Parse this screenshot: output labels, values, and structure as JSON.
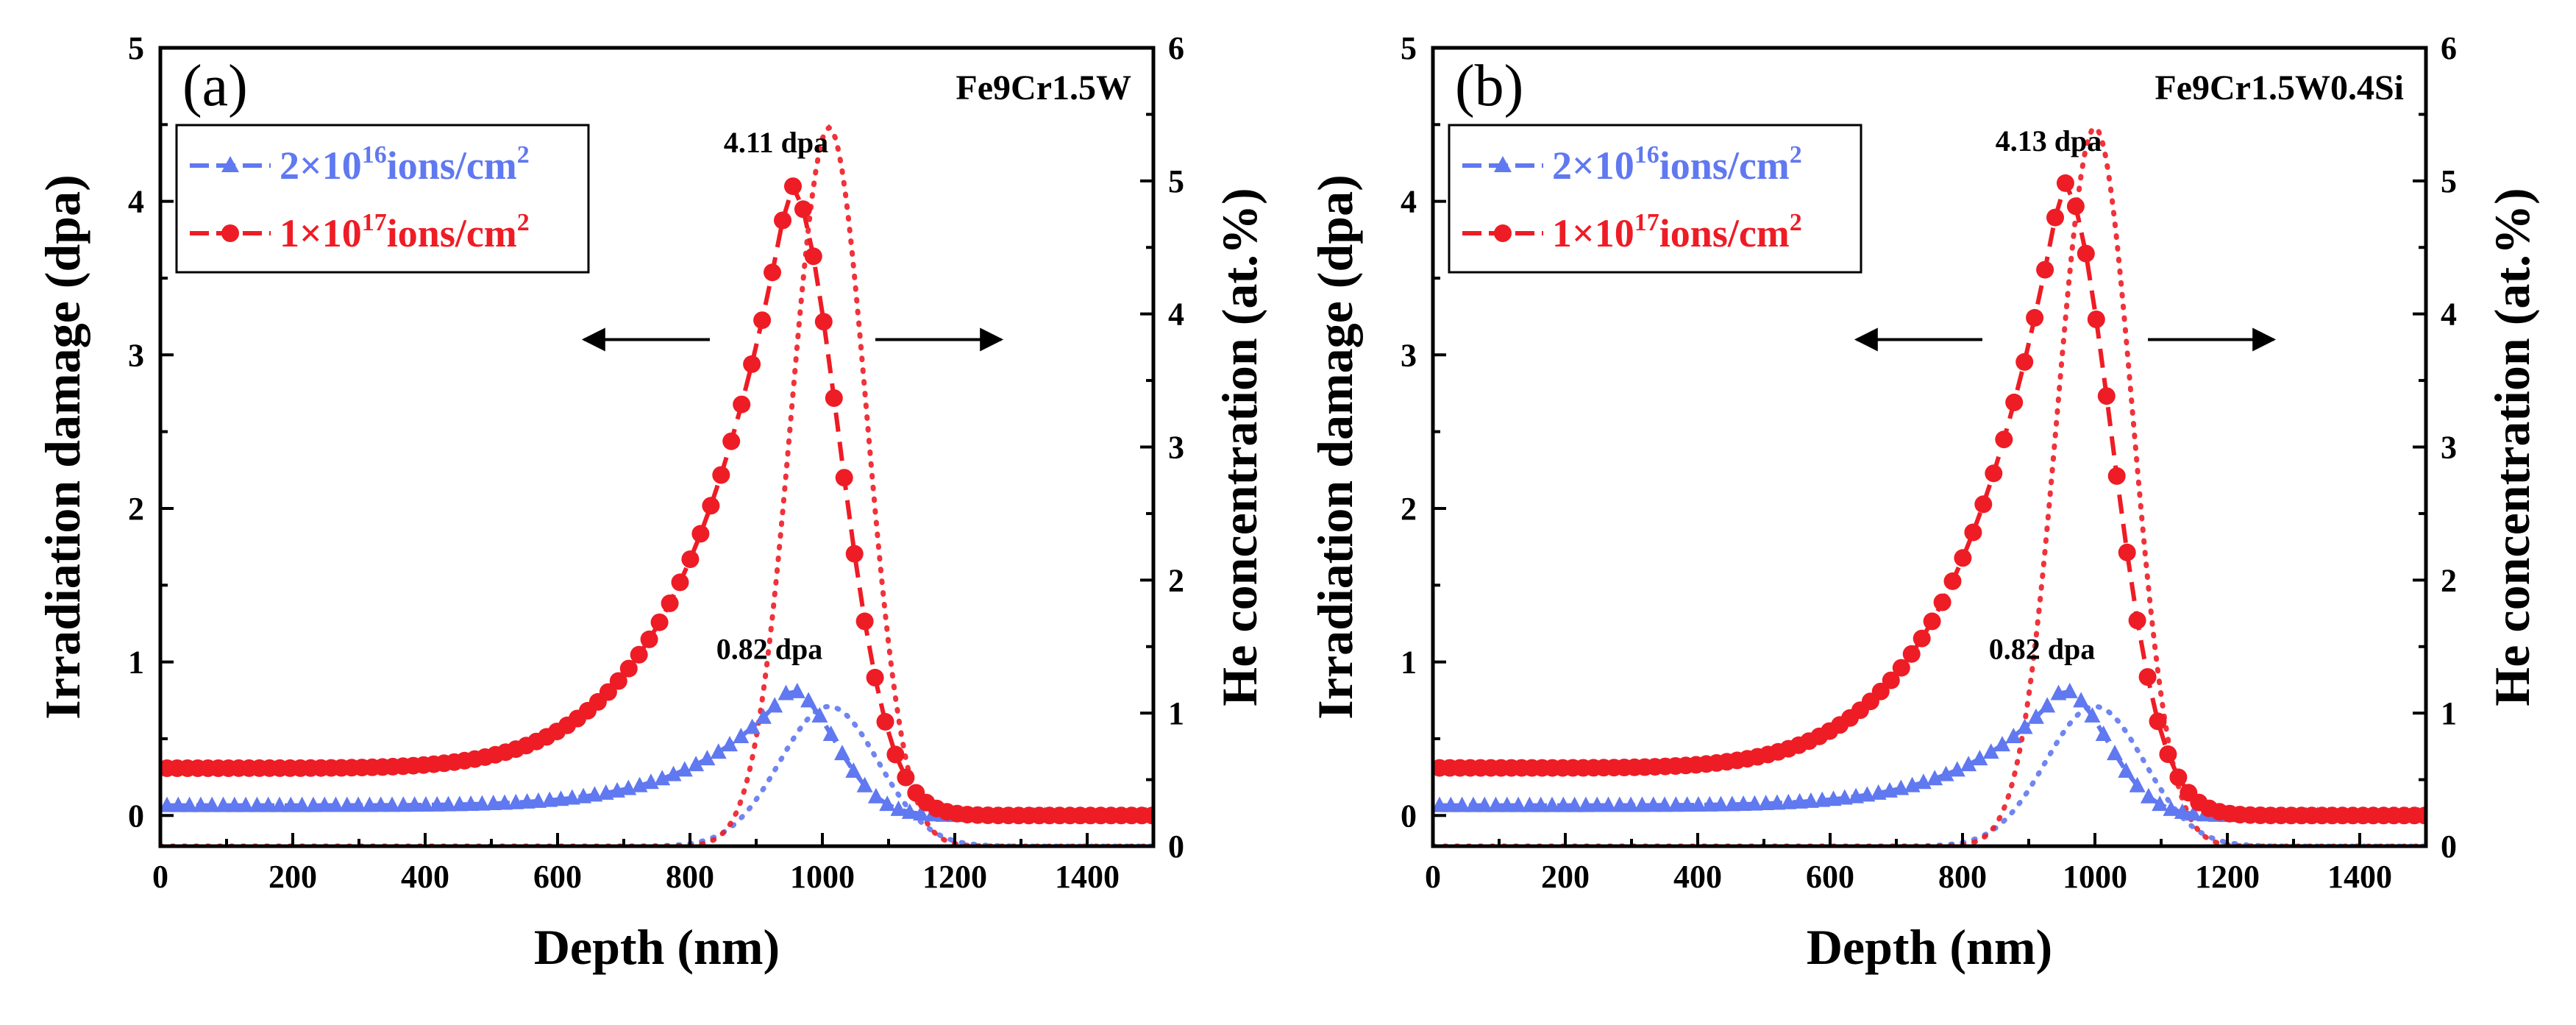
{
  "chart_data": [
    {
      "type": "line",
      "panel_label": "(a)",
      "alloy": "Fe9Cr1.5W",
      "xlabel": "Depth (nm)",
      "ylabel": "Irradiation damage (dpa)",
      "y2label": "He concentration (at.%)",
      "xlim": [
        0,
        1500
      ],
      "ylim": [
        -0.2,
        5
      ],
      "y2lim": [
        0,
        6
      ],
      "xticks": [
        "0",
        "200",
        "400",
        "600",
        "800",
        "1000",
        "1200",
        "1400"
      ],
      "yticks": [
        "0",
        "1",
        "2",
        "3",
        "4",
        "5"
      ],
      "y2ticks": [
        "0",
        "1",
        "2",
        "3",
        "4",
        "5",
        "6"
      ],
      "peak_damage_x": 950,
      "peak_he_x": 1010,
      "he_sigma_blue": 105,
      "he_sigma_red": 80,
      "annotations": [
        {
          "text": "4.11 dpa",
          "x": 930,
          "y": 4.32
        },
        {
          "text": "0.82 dpa",
          "x": 920,
          "y": 1.02
        }
      ],
      "arrows": {
        "y": 3.1,
        "left_from": 830,
        "left_to": 640,
        "right_from": 1080,
        "right_to": 1270
      },
      "series": [
        {
          "name": "2×10^16 ions/cm^2",
          "legend_base": "2×10",
          "legend_exp": "16",
          "legend_unit": "ions/cm",
          "legend_unit_exp": "2",
          "color": "#6078f0",
          "marker": "triangle",
          "damage_peak": 0.82,
          "he_peak": 1.05
        },
        {
          "name": "1×10^17 ions/cm^2",
          "legend_base": "1×10",
          "legend_exp": "17",
          "legend_unit": "ions/cm",
          "legend_unit_exp": "2",
          "color": "#ee1c25",
          "marker": "circle",
          "damage_peak": 4.11,
          "he_peak": 5.4
        }
      ]
    },
    {
      "type": "line",
      "panel_label": "(b)",
      "alloy": "Fe9Cr1.5W0.4Si",
      "xlabel": "Depth (nm)",
      "ylabel": "Irradiation damage (dpa)",
      "y2label": "He concentration (at.%)",
      "xlim": [
        0,
        1500
      ],
      "ylim": [
        -0.2,
        5
      ],
      "y2lim": [
        0,
        6
      ],
      "xticks": [
        "0",
        "200",
        "400",
        "600",
        "800",
        "1000",
        "1200",
        "1400"
      ],
      "yticks": [
        "0",
        "1",
        "2",
        "3",
        "4",
        "5"
      ],
      "y2ticks": [
        "0",
        "1",
        "2",
        "3",
        "4",
        "5",
        "6"
      ],
      "peak_damage_x": 950,
      "peak_he_x": 1000,
      "he_sigma_blue": 105,
      "he_sigma_red": 80,
      "annotations": [
        {
          "text": "4.13 dpa",
          "x": 930,
          "y": 4.33
        },
        {
          "text": "0.82 dpa",
          "x": 920,
          "y": 1.02
        }
      ],
      "arrows": {
        "y": 3.1,
        "left_from": 830,
        "left_to": 640,
        "right_from": 1080,
        "right_to": 1270
      },
      "series": [
        {
          "name": "2×10^16 ions/cm^2",
          "legend_base": "2×10",
          "legend_exp": "16",
          "legend_unit": "ions/cm",
          "legend_unit_exp": "2",
          "color": "#6078f0",
          "marker": "triangle",
          "damage_peak": 0.82,
          "he_peak": 1.05
        },
        {
          "name": "1×10^17 ions/cm^2",
          "legend_base": "1×10",
          "legend_exp": "17",
          "legend_unit": "ions/cm",
          "legend_unit_exp": "2",
          "color": "#ee1c25",
          "marker": "circle",
          "damage_peak": 4.13,
          "he_peak": 5.4
        }
      ]
    }
  ]
}
